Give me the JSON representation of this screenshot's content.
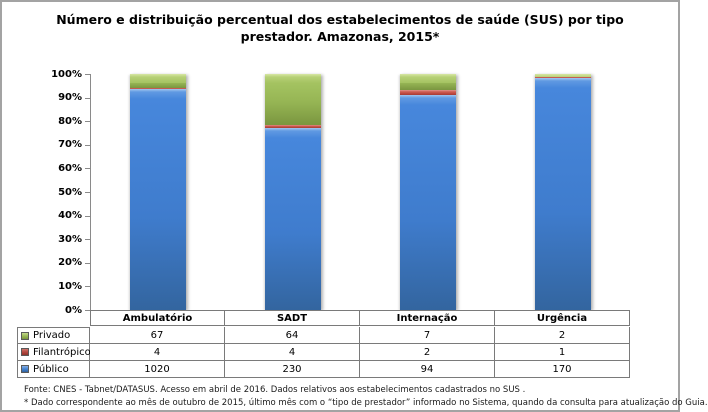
{
  "title": "Número e distribuição percentual dos estabelecimentos de saúde (SUS) por tipo prestador. Amazonas, 2015*",
  "chart_data": {
    "type": "bar",
    "variant": "100%-stacked-column",
    "categories": [
      "Ambulatório",
      "SADT",
      "Internação",
      "Urgência"
    ],
    "series": [
      {
        "name": "Privado",
        "color": "#9BBB59",
        "values": [
          67,
          64,
          7,
          2
        ]
      },
      {
        "name": "Filantrópico",
        "color": "#C0504D",
        "values": [
          4,
          4,
          2,
          1
        ]
      },
      {
        "name": "Público",
        "color": "#4F81BD",
        "values": [
          1020,
          230,
          94,
          170
        ]
      }
    ],
    "y_ticks": [
      "100%",
      "90%",
      "80%",
      "70%",
      "60%",
      "50%",
      "40%",
      "30%",
      "20%",
      "10%",
      "0%"
    ],
    "ylim": [
      0,
      100
    ],
    "grid": false,
    "legend_position": "table-left",
    "title": "Número e distribuição percentual dos estabelecimentos de saúde (SUS) por tipo prestador. Amazonas, 2015*",
    "xlabel": "",
    "ylabel": ""
  },
  "footer": {
    "source": "Fonte: CNES - Tabnet/DATASUS. Acesso em abril de 2016.  Dados relativos aos estabelecimentos cadastrados no SUS .",
    "note": "* Dado correspondente ao mês de  outubro de 2015, último mês com o “tipo de prestador” informado no Sistema, quando da consulta para atualização do Guia."
  }
}
